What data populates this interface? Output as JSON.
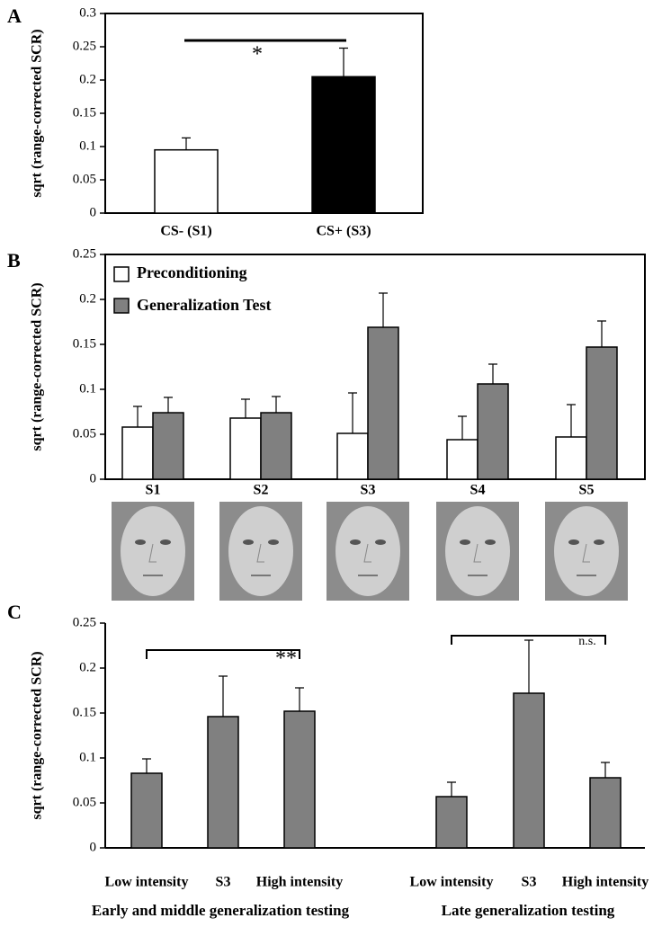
{
  "chart_data": [
    {
      "type": "bar",
      "panel": "A",
      "ylabel": "sqrt (range-corrected SCR)",
      "categories": [
        "CS- (S1)",
        "CS+ (S3)"
      ],
      "values": [
        0.095,
        0.205
      ],
      "errors": [
        0.018,
        0.043
      ],
      "colors": [
        "#ffffff",
        "#000000"
      ],
      "ylim": [
        0,
        0.3
      ],
      "yticks": [
        0,
        0.05,
        0.1,
        0.15,
        0.2,
        0.25,
        0.3
      ],
      "annotations": [
        "*"
      ]
    },
    {
      "type": "grouped-bar",
      "panel": "B",
      "ylabel": "sqrt (range-corrected SCR)",
      "categories": [
        "S1",
        "S2",
        "S3",
        "S4",
        "S5"
      ],
      "series": [
        {
          "name": "Preconditioning",
          "color": "#ffffff",
          "values": [
            0.058,
            0.068,
            0.051,
            0.044,
            0.047
          ],
          "errors": [
            0.023,
            0.021,
            0.045,
            0.026,
            0.036
          ]
        },
        {
          "name": "Generalization Test",
          "color": "#808080",
          "values": [
            0.074,
            0.074,
            0.169,
            0.106,
            0.147
          ],
          "errors": [
            0.017,
            0.018,
            0.038,
            0.022,
            0.029
          ]
        }
      ],
      "ylim": [
        0,
        0.25
      ],
      "yticks": [
        0,
        0.05,
        0.1,
        0.15,
        0.2,
        0.25
      ]
    },
    {
      "type": "bar",
      "panel": "C",
      "ylabel": "sqrt (range-corrected SCR)",
      "categories": [
        "Low intensity",
        "S3",
        "High intensity",
        "Low intensity",
        "S3",
        "High intensity"
      ],
      "group_labels": [
        "Early and middle generalization testing",
        "Late generalization testing"
      ],
      "values": [
        0.083,
        0.146,
        0.152,
        0.057,
        0.172,
        0.078
      ],
      "errors": [
        0.016,
        0.045,
        0.026,
        0.016,
        0.059,
        0.017
      ],
      "color": "#808080",
      "ylim": [
        0,
        0.25
      ],
      "yticks": [
        0,
        0.05,
        0.1,
        0.15,
        0.2,
        0.25
      ],
      "annotations": [
        "**",
        "n.s."
      ]
    }
  ]
}
